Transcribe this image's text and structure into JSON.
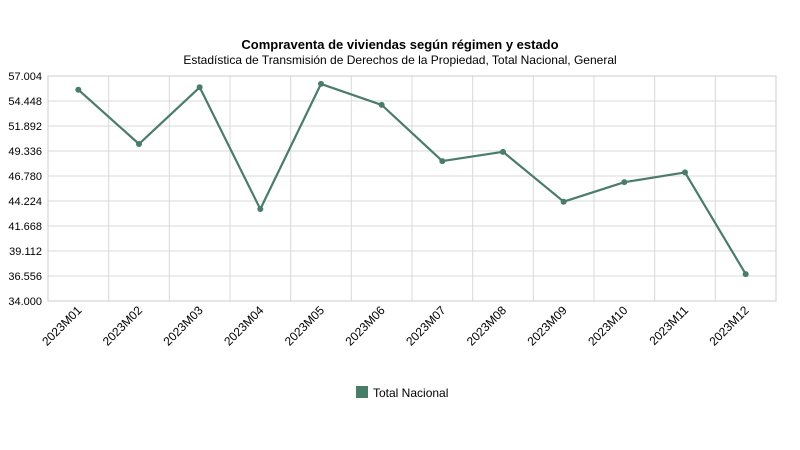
{
  "chart_data": {
    "type": "line",
    "title": "Compraventa de viviendas según régimen y estado",
    "subtitle": "Estadística de Transmisión de Derechos de la Propiedad, Total Nacional, General",
    "xlabel": "",
    "ylabel": "",
    "categories": [
      "2023M01",
      "2023M02",
      "2023M03",
      "2023M04",
      "2023M05",
      "2023M06",
      "2023M07",
      "2023M08",
      "2023M09",
      "2023M10",
      "2023M11",
      "2023M12"
    ],
    "series": [
      {
        "name": "Total Nacional",
        "color": "#4a7c6a",
        "values": [
          55600,
          50050,
          55850,
          43400,
          56200,
          54050,
          48300,
          49250,
          44150,
          46150,
          47150,
          36750
        ]
      }
    ],
    "ylim": [
      34000,
      57004
    ],
    "yticks": [
      "57.004",
      "54.448",
      "51.892",
      "49.336",
      "46.780",
      "44.224",
      "41.668",
      "39.112",
      "36.556",
      "34.000"
    ],
    "grid": true,
    "legend": "bottom-center"
  }
}
